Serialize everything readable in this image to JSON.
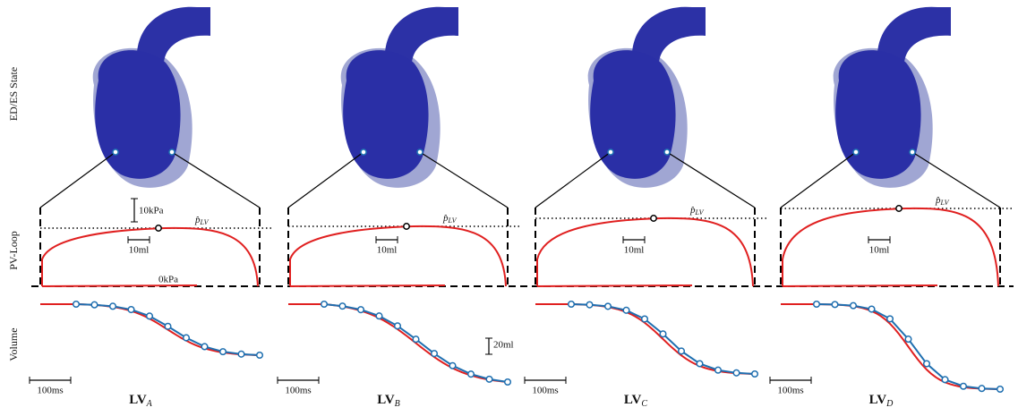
{
  "row_labels": {
    "state": "ED/ES State",
    "pv": "PV-Loop",
    "volume": "Volume"
  },
  "scale_labels": {
    "pressure": "10kPa",
    "zero": "0kPa",
    "volume": "20ml"
  },
  "panels": [
    {
      "label": "LV",
      "subscript": "A",
      "pressure_label": "p̂",
      "pressure_subscript": "LV",
      "volume_scale": "10ml",
      "time_scale": "100ms"
    },
    {
      "label": "LV",
      "subscript": "B",
      "pressure_label": "p̂",
      "pressure_subscript": "LV",
      "volume_scale": "10ml",
      "time_scale": "100ms"
    },
    {
      "label": "LV",
      "subscript": "C",
      "pressure_label": "p̂",
      "pressure_subscript": "LV",
      "volume_scale": "10ml",
      "time_scale": "100ms"
    },
    {
      "label": "LV",
      "subscript": "D",
      "pressure_label": "p̂",
      "pressure_subscript": "LV",
      "volume_scale": "10ml",
      "time_scale": "100ms"
    }
  ]
}
